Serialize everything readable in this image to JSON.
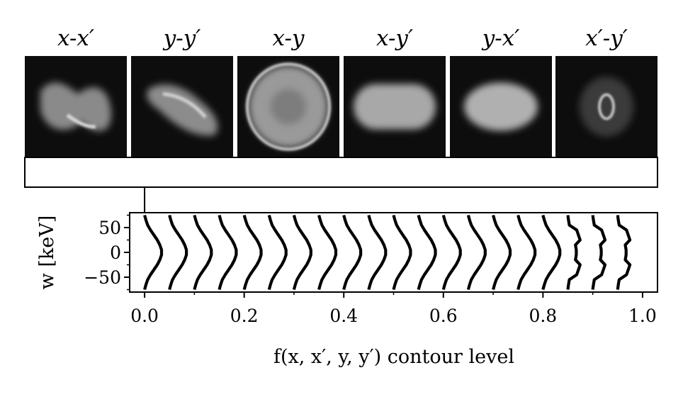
{
  "panels": [
    {
      "title": "x-x",
      "prime": "′",
      "shape": "bowtie"
    },
    {
      "title": "y-y",
      "prime": "′",
      "shape": "s-curve"
    },
    {
      "title": "x-y",
      "prime": "",
      "shape": "disk"
    },
    {
      "title": "x-y",
      "prime": "′",
      "shape": "capsule"
    },
    {
      "title": "y-x",
      "prime": "′",
      "shape": "ellipse"
    },
    {
      "title": "x′-y",
      "prime": "′",
      "shape": "ring"
    }
  ],
  "colors": {
    "panel_bg": "#0d0d0d",
    "curve": "#000000"
  },
  "chart_data": {
    "type": "line",
    "title": "",
    "xlabel": "f(x, x′, y, y′) contour level",
    "ylabel": "w [keV]",
    "xlim": [
      -0.03,
      1.03
    ],
    "ylim": [
      -80,
      80
    ],
    "xticks": [
      0.0,
      0.2,
      0.4,
      0.6,
      0.8,
      1.0
    ],
    "xtick_labels": [
      "0.0",
      "0.2",
      "0.4",
      "0.6",
      "0.8",
      "1.0"
    ],
    "yticks": [
      50,
      0,
      -50
    ],
    "ytick_labels": [
      "50",
      "0",
      "−50"
    ],
    "contour_levels": [
      0.0,
      0.05,
      0.1,
      0.15,
      0.2,
      0.25,
      0.3,
      0.35,
      0.4,
      0.45,
      0.5,
      0.55,
      0.6,
      0.65,
      0.7,
      0.75,
      0.8,
      0.85,
      0.9,
      0.95
    ],
    "profile_w": [
      -75,
      -65,
      -55,
      -45,
      -35,
      -25,
      -15,
      -5,
      5,
      15,
      25,
      35,
      45,
      55,
      65,
      75
    ],
    "profile_relative_density": [
      0.0,
      0.08,
      0.18,
      0.35,
      0.55,
      0.75,
      0.9,
      1.0,
      1.0,
      0.9,
      0.75,
      0.55,
      0.35,
      0.18,
      0.08,
      0.0
    ],
    "marker_level": 0.0
  }
}
